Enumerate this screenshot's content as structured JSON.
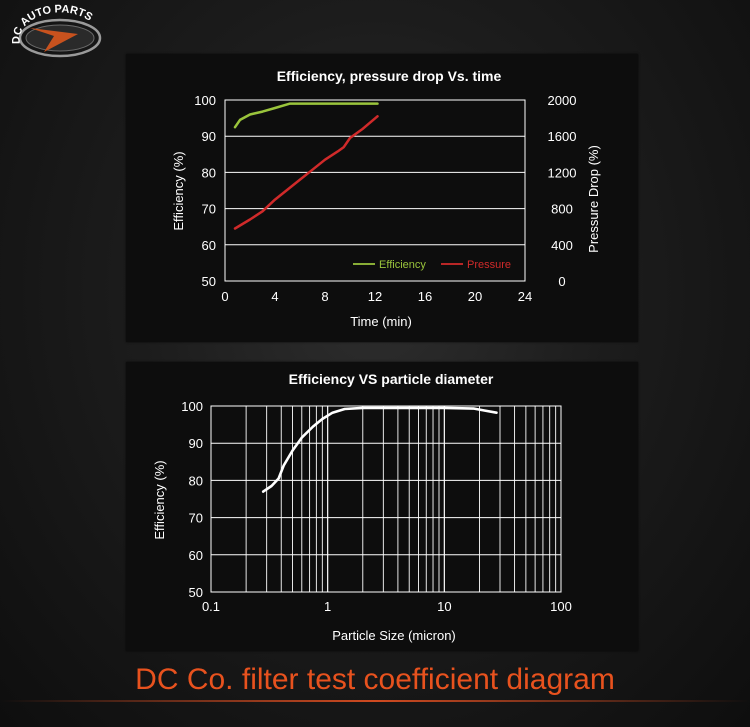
{
  "logo": {
    "text": "DC AUTO PARTS"
  },
  "footer": {
    "title": "DC Co. filter test coefficient diagram"
  },
  "colors": {
    "efficiency": "#9ac43c",
    "pressure": "#d02a2a",
    "curve": "#ffffff",
    "orange": "#e8521e"
  },
  "chart_data": [
    {
      "type": "line",
      "title": "Efficiency, pressure drop Vs. time",
      "xlabel": "Time (min)",
      "ylabel": "Efficiency (%)",
      "y2label": "Pressure Drop (%)",
      "xlim": [
        0,
        24
      ],
      "ylim": [
        50,
        100
      ],
      "y2lim": [
        0,
        2000
      ],
      "xticks": [
        "0",
        "4",
        "8",
        "12",
        "16",
        "20",
        "24"
      ],
      "yticks": [
        "50",
        "60",
        "70",
        "80",
        "90",
        "100"
      ],
      "y2ticks": [
        "0",
        "400",
        "800",
        "1200",
        "1600",
        "2000"
      ],
      "grid": "horizontal",
      "legend": "bottom-right",
      "series": [
        {
          "name": "Efficiency",
          "axis": "left",
          "points": [
            [
              0.8,
              92.5
            ],
            [
              1.2,
              94.5
            ],
            [
              2,
              96
            ],
            [
              3,
              96.8
            ],
            [
              4,
              97.8
            ],
            [
              5.2,
              99
            ],
            [
              6,
              99
            ],
            [
              8,
              99
            ],
            [
              10,
              99
            ],
            [
              12.2,
              99
            ]
          ]
        },
        {
          "name": "Pressure",
          "axis": "right",
          "points": [
            [
              0.8,
              580
            ],
            [
              2,
              680
            ],
            [
              3,
              770
            ],
            [
              4,
              900
            ],
            [
              5,
              1010
            ],
            [
              6,
              1120
            ],
            [
              7,
              1230
            ],
            [
              8,
              1340
            ],
            [
              9,
              1430
            ],
            [
              9.5,
              1480
            ],
            [
              10,
              1580
            ],
            [
              11,
              1680
            ],
            [
              12.2,
              1820
            ]
          ]
        }
      ]
    },
    {
      "type": "line",
      "title": "Efficiency VS particle diameter",
      "xlabel": "Particle Size (micron)",
      "ylabel": "Efficiency (%)",
      "xscale": "log",
      "xlim": [
        0.1,
        100
      ],
      "ylim": [
        50,
        100
      ],
      "xticks": [
        "0.1",
        "1",
        "10",
        "100"
      ],
      "yticks": [
        "50",
        "60",
        "70",
        "80",
        "90",
        "100"
      ],
      "grid": "both",
      "series": [
        {
          "points": [
            [
              0.28,
              77
            ],
            [
              0.33,
              78.5
            ],
            [
              0.38,
              80.5
            ],
            [
              0.42,
              84
            ],
            [
              0.5,
              88
            ],
            [
              0.6,
              91.5
            ],
            [
              0.75,
              94.5
            ],
            [
              0.9,
              96.5
            ],
            [
              1.1,
              98.2
            ],
            [
              1.4,
              99.2
            ],
            [
              2,
              99.5
            ],
            [
              5,
              99.5
            ],
            [
              10,
              99.5
            ],
            [
              18,
              99.3
            ],
            [
              22,
              98.8
            ],
            [
              28,
              98.2
            ]
          ]
        }
      ]
    }
  ]
}
